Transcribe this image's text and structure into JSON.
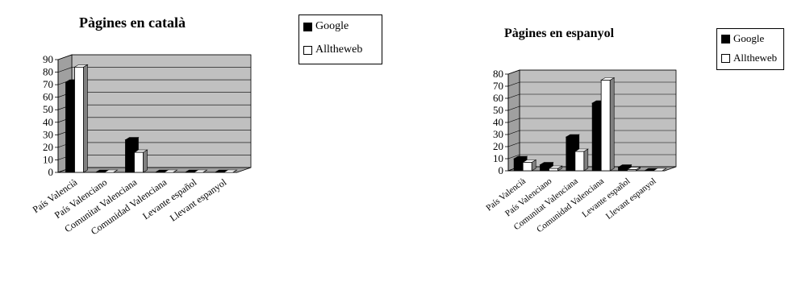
{
  "colors": {
    "plot_bg": "#c0c0c0",
    "plot_floor": "#a0a0a0",
    "google": "#000000",
    "alltheweb": "#ffffff"
  },
  "chart_data": [
    {
      "type": "bar",
      "title": "Pàgines en català",
      "categories": [
        "País Valencià",
        "País Valenciano",
        "Comunitat Valenciana",
        "Comunidad Valenciana",
        "Levante español",
        "Llevant espanyol"
      ],
      "series": [
        {
          "name": "Google",
          "values": [
            72,
            0,
            26,
            0,
            0,
            0
          ]
        },
        {
          "name": "Alltheweb",
          "values": [
            84,
            0,
            16,
            0,
            0,
            0
          ]
        }
      ],
      "ylim": [
        0,
        90
      ],
      "yticks": [
        "0",
        "10",
        "20",
        "30",
        "40",
        "50",
        "60",
        "70",
        "80",
        "90"
      ],
      "grid": true,
      "legend": "right"
    },
    {
      "type": "bar",
      "title": "Pàgines en espanyol",
      "categories": [
        "País Valencià",
        "País Valenciano",
        "Comunitat Valenciana",
        "Comunidad Valenciana",
        "Levante español",
        "Llevant espanyol"
      ],
      "series": [
        {
          "name": "Google",
          "values": [
            10,
            5,
            28,
            56,
            3,
            0
          ]
        },
        {
          "name": "Alltheweb",
          "values": [
            7,
            2,
            16,
            75,
            1,
            0
          ]
        }
      ],
      "ylim": [
        0,
        80
      ],
      "yticks": [
        "0",
        "10",
        "20",
        "30",
        "40",
        "50",
        "60",
        "70",
        "80"
      ],
      "grid": true,
      "legend": "right"
    }
  ]
}
